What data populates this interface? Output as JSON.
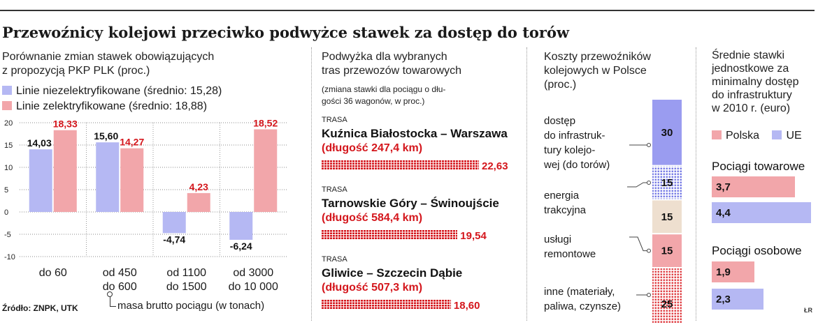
{
  "title": "Przewoźnicy kolejowi przeciwko podwyżce stawek za dostęp do torów",
  "source": "Źródło: ZNPK, UTK",
  "credit": "ŁR",
  "colors": {
    "blue": "#b5b8f3",
    "red": "#f2a6aa",
    "accent": "#d4161c",
    "purple": "#9a9cf0",
    "beige": "#eedfcf"
  },
  "panel1": {
    "subtitle_line1": "Porównanie zmian stawek obowiązujących",
    "subtitle_line2": "z propozycją PKP PLK (proc.)",
    "legend_blue": "Linie niezelektryfikowane (średnio: 15,28)",
    "legend_red": "Linie zelektryfikowane (średnio: 18,88)",
    "mass_note": "masa brutto pociągu (w tonach)"
  },
  "panel2": {
    "subtitle_line1": "Podwyżka dla wybranych",
    "subtitle_line2": "tras przewozów towarowych",
    "note_line1": "(zmiana stawki dla pociągu o dłu-",
    "note_line2": "gości 36 wagonów, w proc.)",
    "routes": [
      {
        "label": "TRASA",
        "name": "Kuźnica Białostocka – Warszawa",
        "length": "(długość 247,4 km)",
        "value": 22.63,
        "value_label": "22,63"
      },
      {
        "label": "TRASA",
        "name": "Tarnowskie Góry – Świnoujście",
        "length": "(długość 584,4 km)",
        "value": 19.54,
        "value_label": "19,54"
      },
      {
        "label": "TRASA",
        "name": "Gliwice – Szczecin Dąbie",
        "length": "(długość 507,3 km)",
        "value": 18.6,
        "value_label": "18,60"
      }
    ]
  },
  "panel3": {
    "subtitle_line1": "Koszty przewoźników",
    "subtitle_line2": "kolejowych w Polsce",
    "subtitle_line3": "(proc.)",
    "labels": {
      "dostep": [
        "dostęp",
        "do infrastruk-",
        "tury kolejo-",
        "wej (do torów)"
      ],
      "energia": [
        "energia",
        "trakcyjna"
      ],
      "uslugi": [
        "usługi",
        "remontowe"
      ],
      "inne": [
        "inne (materiały,",
        "paliwa, czynsze)"
      ]
    }
  },
  "panel4": {
    "subtitle_lines": [
      "Średnie stawki",
      "jednostkowe za",
      "minimalny dostęp",
      "do infrastruktury",
      "w 2010 r. (euro)"
    ],
    "legend_pl": "Polska",
    "legend_ue": "UE",
    "group1": "Pociągi towarowe",
    "group2": "Pociągi osobowe"
  },
  "chart_data": [
    {
      "type": "bar",
      "title": "Porównanie zmian stawek obowiązujących z propozycją PKP PLK (proc.)",
      "xlabel": "masa brutto pociągu (w tonach)",
      "categories": [
        [
          "do 60"
        ],
        [
          "od 450",
          "do 600"
        ],
        [
          "od 1100",
          "do 1500"
        ],
        [
          "od 3000",
          "do 10 000"
        ]
      ],
      "series": [
        {
          "name": "Linie niezelektryfikowane (średnio: 15,28)",
          "color": "#b5b8f3",
          "values": [
            14.03,
            15.6,
            -4.74,
            -6.24
          ],
          "labels": [
            "14,03",
            "15,60",
            "-4,74",
            "-6,24"
          ]
        },
        {
          "name": "Linie zelektryfikowane (średnio: 18,88)",
          "color": "#f2a6aa",
          "values": [
            18.33,
            14.27,
            4.23,
            18.52
          ],
          "labels": [
            "18,33",
            "14,27",
            "4,23",
            "18,52"
          ]
        }
      ],
      "ylim": [
        -10,
        20
      ],
      "yticks": [
        -10,
        -5,
        0,
        5,
        10,
        15,
        20
      ],
      "ytick_labels": [
        "-10",
        "-5",
        "0",
        "5",
        "10",
        "15",
        "20"
      ]
    },
    {
      "type": "bar",
      "title": "Koszty przewoźników kolejowych w Polsce (proc.)",
      "stacked": true,
      "segments": [
        {
          "name": "dostęp do infrastruktury kolejowej (do torów)",
          "value": 30,
          "label": "30",
          "fill": "purple"
        },
        {
          "name": "",
          "value": 15,
          "label": "15",
          "fill": "blue-dotted"
        },
        {
          "name": "energia trakcyjna",
          "value": 15,
          "label": "15",
          "fill": "beige"
        },
        {
          "name": "usługi remontowe",
          "value": 15,
          "label": "15",
          "fill": "red"
        },
        {
          "name": "inne (materiały, paliwa, czynsze)",
          "value": 25,
          "label": "25",
          "fill": "red-dotted"
        }
      ]
    },
    {
      "type": "bar",
      "orientation": "horizontal",
      "title": "Średnie stawki jednostkowe za minimalny dostęp do infrastruktury w 2010 r. (euro)",
      "groups": [
        {
          "name": "Pociągi towarowe",
          "bars": [
            {
              "series": "Polska",
              "value": 3.7,
              "label": "3,7"
            },
            {
              "series": "UE",
              "value": 4.4,
              "label": "4,4"
            }
          ]
        },
        {
          "name": "Pociągi osobowe",
          "bars": [
            {
              "series": "Polska",
              "value": 1.9,
              "label": "1,9"
            },
            {
              "series": "UE",
              "value": 2.3,
              "label": "2,3"
            }
          ]
        }
      ]
    }
  ]
}
